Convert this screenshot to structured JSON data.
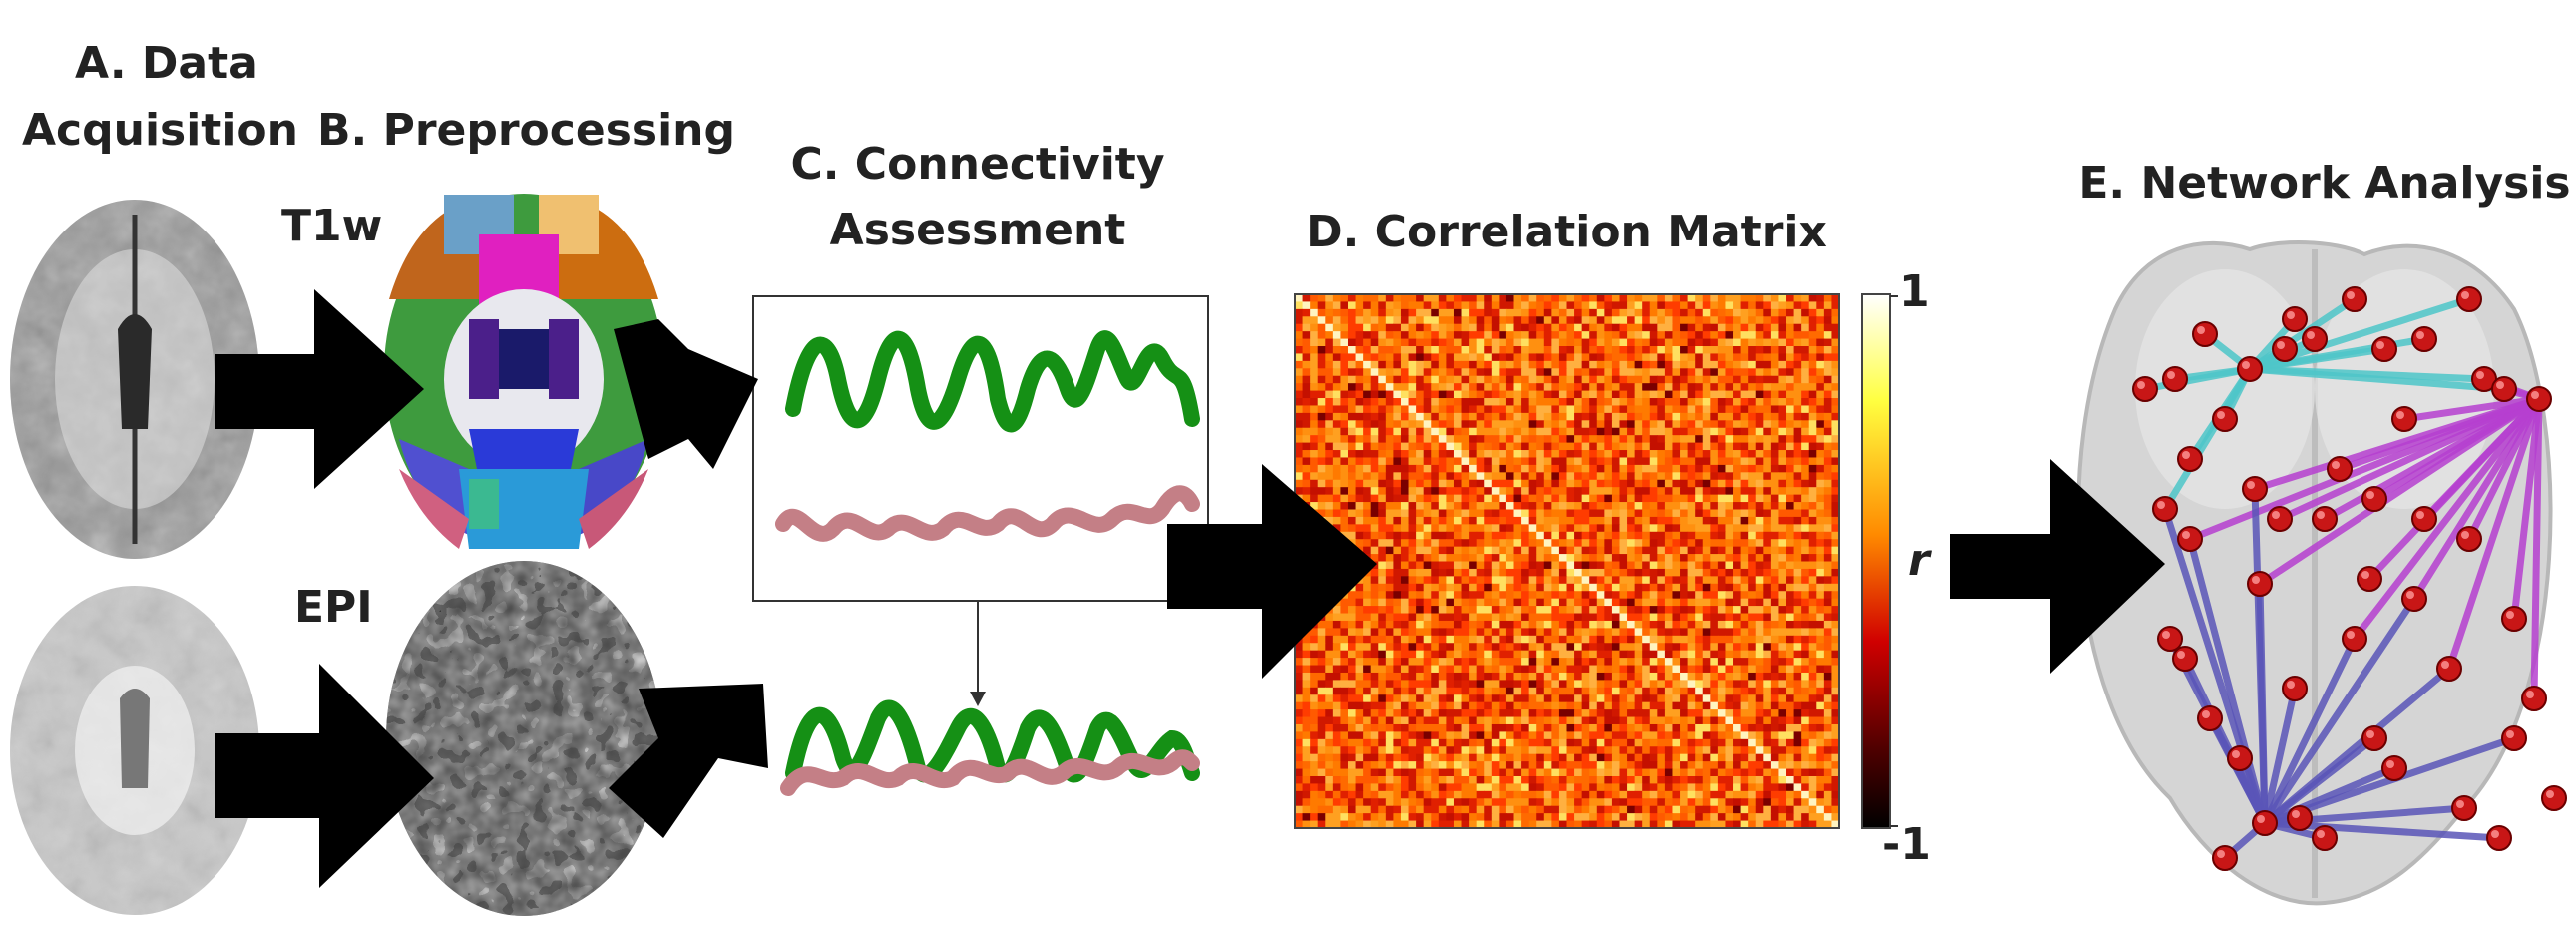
{
  "stages": {
    "a_title_line1": "A. Data",
    "a_title_line2": "Acquisition",
    "b_title": "B. Preprocessing",
    "c_title_line1": "C. Connectivity",
    "c_title_line2": "Assessment",
    "d_title": "D. Correlation Matrix",
    "e_title": "E. Network Analysis"
  },
  "labels": {
    "t1w": "T1w",
    "epi": "EPI"
  },
  "colorbar": {
    "max_label": "1",
    "min_label": "-1",
    "var_label": "r"
  },
  "colors": {
    "arrow": "#000000",
    "signal_green": "#159015",
    "signal_pink": "#c47f86",
    "edge_cyan": "#4ec6c9",
    "edge_magenta": "#b63fd0",
    "edge_blue": "#5a55b8",
    "node_red": "#c81616"
  },
  "icons": {
    "t1w_brain": "brain-mri-t1w-icon",
    "epi_brain": "brain-mri-epi-icon",
    "parcellation": "brain-parcellation-icon",
    "epi_processed": "brain-epi-processed-icon",
    "network": "brain-network-icon"
  }
}
